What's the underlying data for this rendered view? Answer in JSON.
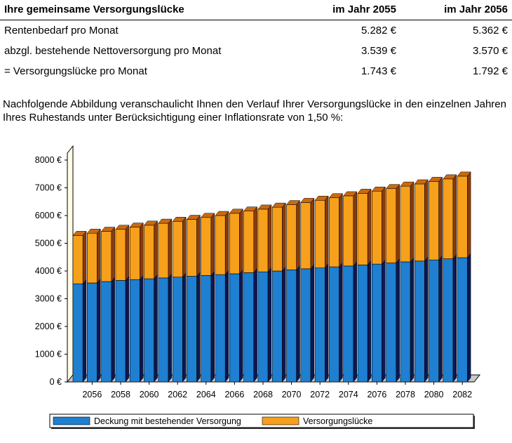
{
  "table": {
    "headers": [
      "Ihre gemeinsame Versorgungslücke",
      "im Jahr 2055",
      "im Jahr 2056"
    ],
    "rows": [
      {
        "label": "Rentenbedarf pro Monat",
        "v2055": "5.282 €",
        "v2056": "5.362 €"
      },
      {
        "label": "abzgl. bestehende Nettoversorgung pro Monat",
        "v2055": "3.539 €",
        "v2056": "3.570 €"
      },
      {
        "label": "= Versorgungslücke pro Monat",
        "v2055": "1.743 €",
        "v2056": "1.792 €"
      }
    ]
  },
  "intro_text": "Nachfolgende Abbildung veranschaulicht Ihnen den Verlauf Ihrer Versorgungslücke in den einzelnen Jahren Ihres Ruhestands unter Berücksichtigung einer Inflationsrate von 1,50 %:",
  "chart_data": {
    "type": "bar",
    "stacked": true,
    "three_d": true,
    "categories": [
      "2055",
      "2056",
      "2057",
      "2058",
      "2059",
      "2060",
      "2061",
      "2062",
      "2063",
      "2064",
      "2065",
      "2066",
      "2067",
      "2068",
      "2069",
      "2070",
      "2071",
      "2072",
      "2073",
      "2074",
      "2075",
      "2076",
      "2077",
      "2078",
      "2079",
      "2080",
      "2081",
      "2082"
    ],
    "x_tick_labels": [
      "2056",
      "2058",
      "2060",
      "2062",
      "2064",
      "2066",
      "2068",
      "2070",
      "2072",
      "2074",
      "2076",
      "2078",
      "2080",
      "2082"
    ],
    "series": [
      {
        "name": "Deckung mit bestehender Versorgung",
        "color": "#1f7fd0",
        "values": [
          3539,
          3570,
          3620,
          3660,
          3690,
          3720,
          3750,
          3780,
          3810,
          3840,
          3870,
          3900,
          3940,
          3970,
          4000,
          4040,
          4080,
          4110,
          4150,
          4180,
          4220,
          4250,
          4290,
          4330,
          4360,
          4400,
          4440,
          4480
        ]
      },
      {
        "name": "Versorgungslücke",
        "color": "#f7a01b",
        "values": [
          1743,
          1792,
          1810,
          1840,
          1890,
          1930,
          1970,
          2010,
          2050,
          2090,
          2130,
          2180,
          2220,
          2260,
          2300,
          2350,
          2390,
          2440,
          2490,
          2530,
          2580,
          2630,
          2680,
          2730,
          2780,
          2830,
          2880,
          2940
        ]
      }
    ],
    "ylim": [
      0,
      8000
    ],
    "y_ticks": [
      0,
      1000,
      2000,
      3000,
      4000,
      5000,
      6000,
      7000,
      8000
    ],
    "y_tick_suffix": " €",
    "grid": false,
    "legend_position": "bottom",
    "colors": {
      "wall": "#fffde8",
      "floor": "#c8c8c8",
      "blue_side": "#0a1852",
      "orange_side": "#8a3a08"
    }
  }
}
